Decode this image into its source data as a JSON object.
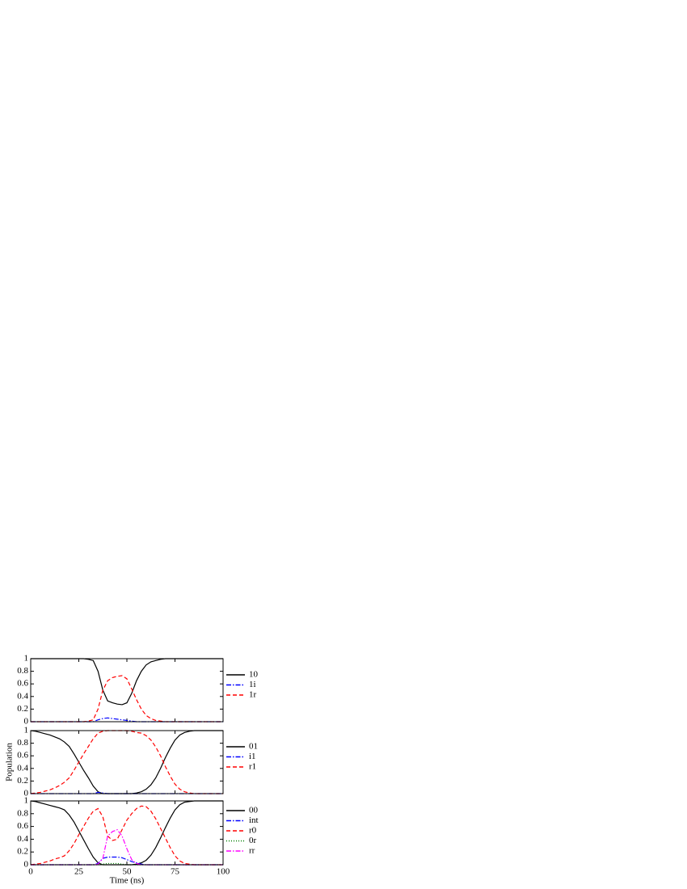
{
  "chart_data": [
    {
      "type": "line",
      "x": [
        0,
        2.5,
        5,
        7.5,
        10,
        12.5,
        15,
        17.5,
        20,
        22.5,
        25,
        27.5,
        30,
        32.5,
        35,
        37.5,
        40,
        42.5,
        45,
        47.5,
        50,
        52.5,
        55,
        57.5,
        60,
        62.5,
        65,
        67.5,
        70,
        72.5,
        75,
        77.5,
        80,
        82.5,
        85,
        87.5,
        90,
        92.5,
        95,
        97.5,
        100
      ],
      "xlim": [
        0,
        100
      ],
      "xticks": [
        0,
        25,
        50,
        75,
        100
      ],
      "ylim": [
        0,
        1
      ],
      "yticks": [
        0,
        0.2,
        0.4,
        0.6,
        0.8,
        1
      ],
      "series": [
        {
          "name": "10",
          "color": "#000000",
          "style": "solid",
          "values": [
            1,
            1,
            1,
            1,
            1,
            1,
            1,
            1,
            1,
            1,
            1,
            1,
            0.99,
            0.97,
            0.8,
            0.5,
            0.33,
            0.3,
            0.28,
            0.27,
            0.3,
            0.45,
            0.65,
            0.8,
            0.9,
            0.95,
            0.97,
            0.99,
            1,
            1,
            1,
            1,
            1,
            1,
            1,
            1,
            1,
            1,
            1,
            1,
            1
          ]
        },
        {
          "name": "1i",
          "color": "#0000ff",
          "style": "dashdot",
          "values": [
            0,
            0,
            0,
            0,
            0,
            0,
            0,
            0,
            0,
            0,
            0,
            0,
            0,
            0,
            0.03,
            0.05,
            0.06,
            0.05,
            0.04,
            0.03,
            0.02,
            0.01,
            0,
            0,
            0,
            0,
            0,
            0,
            0,
            0,
            0,
            0,
            0,
            0,
            0,
            0,
            0,
            0,
            0,
            0,
            0
          ]
        },
        {
          "name": "1r",
          "color": "#ff0000",
          "style": "dashed",
          "values": [
            0,
            0,
            0,
            0,
            0,
            0,
            0,
            0,
            0,
            0,
            0,
            0,
            0.01,
            0.03,
            0.2,
            0.5,
            0.65,
            0.7,
            0.72,
            0.73,
            0.68,
            0.52,
            0.35,
            0.2,
            0.1,
            0.05,
            0.02,
            0.01,
            0,
            0,
            0,
            0,
            0,
            0,
            0,
            0,
            0,
            0,
            0,
            0,
            0
          ]
        }
      ]
    },
    {
      "type": "line",
      "y_label": "Population",
      "x": [
        0,
        2.5,
        5,
        7.5,
        10,
        12.5,
        15,
        17.5,
        20,
        22.5,
        25,
        27.5,
        30,
        32.5,
        35,
        37.5,
        40,
        42.5,
        45,
        47.5,
        50,
        52.5,
        55,
        57.5,
        60,
        62.5,
        65,
        67.5,
        70,
        72.5,
        75,
        77.5,
        80,
        82.5,
        85,
        87.5,
        90,
        92.5,
        95,
        97.5,
        100
      ],
      "xlim": [
        0,
        100
      ],
      "xticks": [
        0,
        25,
        50,
        75,
        100
      ],
      "ylim": [
        0,
        1
      ],
      "yticks": [
        0,
        0.2,
        0.4,
        0.6,
        0.8,
        1
      ],
      "series": [
        {
          "name": "01",
          "color": "#000000",
          "style": "solid",
          "values": [
            1,
            0.99,
            0.97,
            0.95,
            0.93,
            0.9,
            0.87,
            0.82,
            0.75,
            0.63,
            0.5,
            0.37,
            0.25,
            0.12,
            0.03,
            0,
            0,
            0,
            0,
            0,
            0,
            0,
            0.01,
            0.03,
            0.07,
            0.14,
            0.25,
            0.4,
            0.57,
            0.72,
            0.85,
            0.93,
            0.97,
            0.99,
            1,
            1,
            1,
            1,
            1,
            1,
            1
          ]
        },
        {
          "name": "i1",
          "color": "#0000ff",
          "style": "dashdot",
          "values": [
            0,
            0,
            0,
            0,
            0,
            0,
            0,
            0,
            0,
            0,
            0,
            0,
            0,
            0,
            0.02,
            0.01,
            0,
            0,
            0,
            0,
            0,
            0,
            0,
            0,
            0,
            0,
            0,
            0,
            0,
            0,
            0,
            0,
            0,
            0,
            0,
            0,
            0,
            0,
            0,
            0,
            0
          ]
        },
        {
          "name": "r1",
          "color": "#ff0000",
          "style": "dashed",
          "values": [
            0,
            0.01,
            0.02,
            0.04,
            0.06,
            0.09,
            0.13,
            0.18,
            0.25,
            0.37,
            0.5,
            0.63,
            0.75,
            0.87,
            0.96,
            0.99,
            1,
            1,
            1,
            1,
            1,
            0.99,
            0.97,
            0.96,
            0.92,
            0.85,
            0.74,
            0.6,
            0.43,
            0.28,
            0.15,
            0.07,
            0.03,
            0.01,
            0,
            0,
            0,
            0,
            0,
            0,
            0
          ]
        }
      ]
    },
    {
      "type": "line",
      "x_label": "Time (ns)",
      "x": [
        0,
        2.5,
        5,
        7.5,
        10,
        12.5,
        15,
        17.5,
        20,
        22.5,
        25,
        27.5,
        30,
        32.5,
        35,
        37.5,
        40,
        42.5,
        45,
        47.5,
        50,
        52.5,
        55,
        57.5,
        60,
        62.5,
        65,
        67.5,
        70,
        72.5,
        75,
        77.5,
        80,
        82.5,
        85,
        87.5,
        90,
        92.5,
        95,
        97.5,
        100
      ],
      "xlim": [
        0,
        100
      ],
      "xticks": [
        0,
        25,
        50,
        75,
        100
      ],
      "ylim": [
        0,
        1
      ],
      "yticks": [
        0,
        0.2,
        0.4,
        0.6,
        0.8,
        1
      ],
      "series": [
        {
          "name": "00",
          "color": "#000000",
          "style": "solid",
          "values": [
            1,
            0.99,
            0.97,
            0.95,
            0.93,
            0.91,
            0.89,
            0.86,
            0.78,
            0.67,
            0.53,
            0.39,
            0.25,
            0.12,
            0.03,
            0,
            0,
            0,
            0,
            0,
            0,
            0,
            0.01,
            0.03,
            0.07,
            0.15,
            0.27,
            0.42,
            0.58,
            0.73,
            0.86,
            0.94,
            0.98,
            0.99,
            1,
            1,
            1,
            1,
            1,
            1,
            1
          ]
        },
        {
          "name": "int",
          "color": "#0000ff",
          "style": "dashdot",
          "values": [
            0,
            0,
            0,
            0,
            0,
            0,
            0,
            0,
            0,
            0,
            0,
            0,
            0,
            0,
            0.02,
            0.1,
            0.12,
            0.12,
            0.12,
            0.11,
            0.08,
            0.05,
            0.03,
            0.01,
            0,
            0,
            0,
            0,
            0,
            0,
            0,
            0,
            0,
            0,
            0,
            0,
            0,
            0,
            0,
            0,
            0
          ]
        },
        {
          "name": "r0",
          "color": "#ff0000",
          "style": "dashed",
          "values": [
            0,
            0.01,
            0.02,
            0.04,
            0.06,
            0.09,
            0.11,
            0.14,
            0.22,
            0.33,
            0.47,
            0.6,
            0.73,
            0.84,
            0.88,
            0.75,
            0.45,
            0.38,
            0.4,
            0.55,
            0.7,
            0.8,
            0.88,
            0.92,
            0.91,
            0.84,
            0.72,
            0.57,
            0.42,
            0.27,
            0.14,
            0.06,
            0.02,
            0.01,
            0,
            0,
            0,
            0,
            0,
            0,
            0
          ]
        },
        {
          "name": "0r",
          "color": "#008000",
          "style": "dotted",
          "values": [
            0,
            0,
            0,
            0,
            0,
            0,
            0,
            0,
            0,
            0,
            0,
            0,
            0,
            0,
            0,
            0.01,
            0.02,
            0.02,
            0.02,
            0.01,
            0,
            0,
            0,
            0,
            0,
            0,
            0,
            0,
            0,
            0,
            0,
            0,
            0,
            0,
            0,
            0,
            0,
            0,
            0,
            0,
            0
          ]
        },
        {
          "name": "rr",
          "color": "#ff00ff",
          "style": "dashdot",
          "values": [
            0,
            0,
            0,
            0,
            0,
            0,
            0,
            0,
            0,
            0,
            0,
            0,
            0,
            0,
            0.01,
            0.1,
            0.45,
            0.52,
            0.55,
            0.45,
            0.25,
            0.08,
            0.02,
            0,
            0,
            0,
            0,
            0,
            0,
            0,
            0,
            0,
            0,
            0,
            0,
            0,
            0,
            0,
            0,
            0,
            0
          ]
        }
      ]
    }
  ]
}
